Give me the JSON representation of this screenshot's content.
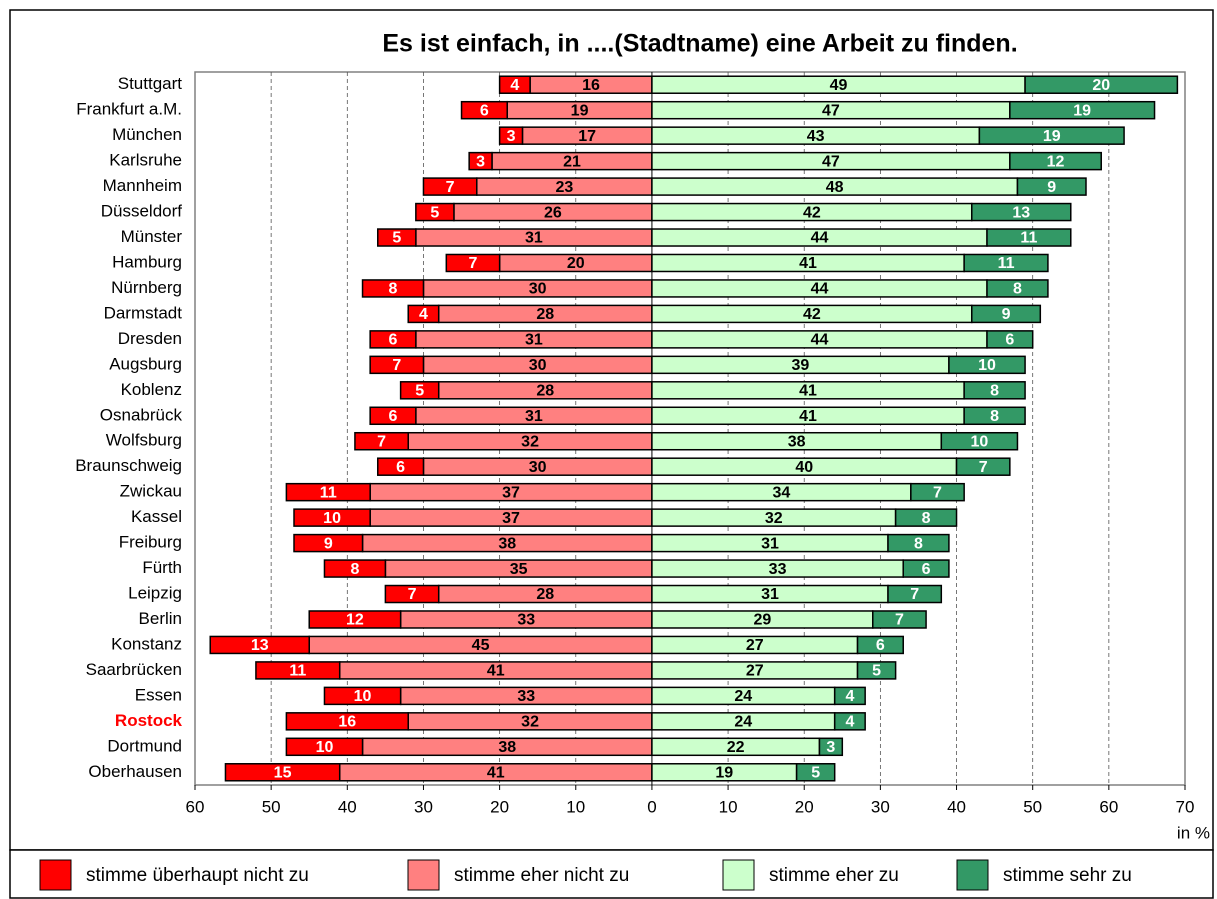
{
  "chart_data": {
    "type": "diverging_bar",
    "title": "Es ist einfach, in ....(Stadtname) eine Arbeit zu finden.",
    "x_label": "in %",
    "categories": [
      "Stuttgart",
      "Frankfurt a.M.",
      "München",
      "Karlsruhe",
      "Mannheim",
      "Düsseldorf",
      "Münster",
      "Hamburg",
      "Nürnberg",
      "Darmstadt",
      "Dresden",
      "Augsburg",
      "Koblenz",
      "Osnabrück",
      "Wolfsburg",
      "Braunschweig",
      "Zwickau",
      "Kassel",
      "Freiburg",
      "Fürth",
      "Leipzig",
      "Berlin",
      "Konstanz",
      "Saarbrücken",
      "Essen",
      "Rostock",
      "Dortmund",
      "Oberhausen"
    ],
    "highlight": 25,
    "highlight_color": "#ff0000",
    "series": [
      {
        "name": "stimme überhaupt nicht zu",
        "color": "#ff0000",
        "label_color": "#ffffff",
        "stack": 1,
        "values": [
          -4,
          -6,
          -3,
          -3,
          -7,
          -5,
          -5,
          -7,
          -8,
          -4,
          -6,
          -7,
          -5,
          -6,
          -7,
          -6,
          -11,
          -10,
          -9,
          -8,
          -7,
          -12,
          -13,
          -11,
          -10,
          -16,
          -10,
          -15
        ],
        "value_labels": [
          "4",
          "6",
          "3",
          "3",
          "7",
          "5",
          "5",
          "7",
          "8",
          "4",
          "6",
          "7",
          "5",
          "6",
          "7",
          "6",
          "11",
          "10",
          "9",
          "8",
          "7",
          "12",
          "13",
          "11",
          "10",
          "16",
          "10",
          "15"
        ]
      },
      {
        "name": "stimme eher nicht zu",
        "color": "#ff8080",
        "label_color": "#000000",
        "stack": 0,
        "values": [
          -16,
          -19,
          -17,
          -21,
          -23,
          -26,
          -31,
          -20,
          -30,
          -28,
          -31,
          -30,
          -28,
          -31,
          -32,
          -30,
          -37,
          -37,
          -38,
          -35,
          -28,
          -33,
          -45,
          -41,
          -33,
          -32,
          -38,
          -41
        ],
        "value_labels": [
          "16",
          "19",
          "17",
          "21",
          "23",
          "26",
          "31",
          "20",
          "30",
          "28",
          "31",
          "30",
          "28",
          "31",
          "32",
          "30",
          "37",
          "37",
          "38",
          "35",
          "28",
          "33",
          "45",
          "41",
          "33",
          "32",
          "38",
          "41"
        ]
      },
      {
        "name": "stimme eher zu",
        "color": "#ccffcc",
        "label_color": "#000000",
        "stack": 0,
        "values": [
          49,
          47,
          43,
          47,
          48,
          42,
          44,
          41,
          44,
          42,
          44,
          39,
          41,
          41,
          38,
          40,
          34,
          32,
          31,
          33,
          31,
          29,
          27,
          27,
          24,
          24,
          22,
          19
        ]
      },
      {
        "name": "stimme sehr zu",
        "color": "#339966",
        "label_color": "#ffffff",
        "stack": 1,
        "values": [
          20,
          19,
          19,
          12,
          9,
          13,
          11,
          11,
          8,
          9,
          6,
          10,
          8,
          8,
          10,
          7,
          7,
          8,
          8,
          6,
          7,
          7,
          6,
          5,
          4,
          4,
          3,
          5
        ]
      }
    ],
    "xlim": [
      -60,
      70
    ],
    "xticks": [
      {
        "value": -60,
        "label": "60"
      },
      {
        "value": -50,
        "label": "50"
      },
      {
        "value": -40,
        "label": "40"
      },
      {
        "value": -30,
        "label": "30"
      },
      {
        "value": -20,
        "label": "20"
      },
      {
        "value": -10,
        "label": "10"
      },
      0,
      10,
      20,
      30,
      40,
      50,
      60,
      70
    ],
    "grid": true
  }
}
